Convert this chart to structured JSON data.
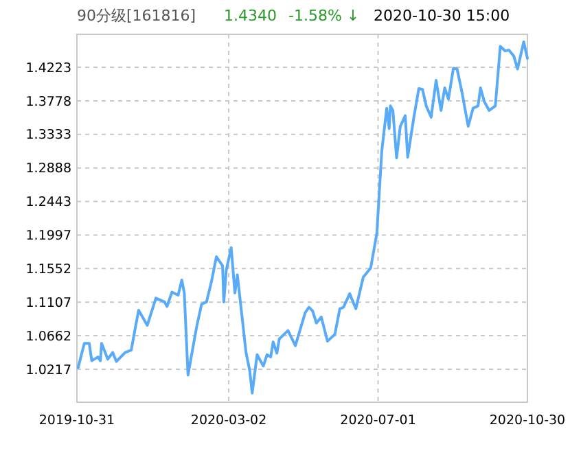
{
  "chart_data": {
    "type": "line",
    "title": "90分级[161816]",
    "annotations": [
      "1.4340",
      "-1.58% ↓",
      "2020-10-30 15:00"
    ],
    "x": [
      "2019-11-01",
      "2019-11-06",
      "2019-11-10",
      "2019-11-12",
      "2019-11-17",
      "2019-11-19",
      "2019-11-20",
      "2019-11-25",
      "2019-11-29",
      "2019-12-02",
      "2019-12-09",
      "2019-12-14",
      "2019-12-17",
      "2019-12-20",
      "2019-12-27",
      "2020-01-03",
      "2020-01-10",
      "2020-01-12",
      "2020-01-16",
      "2020-01-21",
      "2020-01-24",
      "2020-01-26",
      "2020-01-29",
      "2020-02-05",
      "2020-02-09",
      "2020-02-13",
      "2020-02-17",
      "2020-02-21",
      "2020-02-26",
      "2020-02-27",
      "2020-02-29",
      "2020-03-04",
      "2020-03-07",
      "2020-03-09",
      "2020-03-16",
      "2020-03-19",
      "2020-03-21",
      "2020-03-25",
      "2020-03-30",
      "2020-04-02",
      "2020-04-05",
      "2020-04-07",
      "2020-04-10",
      "2020-04-12",
      "2020-04-19",
      "2020-04-25",
      "2020-05-03",
      "2020-05-06",
      "2020-05-09",
      "2020-05-12",
      "2020-05-16",
      "2020-05-21",
      "2020-05-27",
      "2020-05-31",
      "2020-06-03",
      "2020-06-08",
      "2020-06-13",
      "2020-06-19",
      "2020-06-25",
      "2020-06-30",
      "2020-07-04",
      "2020-07-08",
      "2020-07-10",
      "2020-07-11",
      "2020-07-13",
      "2020-07-16",
      "2020-07-19",
      "2020-07-23",
      "2020-07-25",
      "2020-07-30",
      "2020-08-03",
      "2020-08-06",
      "2020-08-09",
      "2020-08-13",
      "2020-08-17",
      "2020-08-21",
      "2020-08-24",
      "2020-08-27",
      "2020-08-31",
      "2020-09-03",
      "2020-09-07",
      "2020-09-12",
      "2020-09-16",
      "2020-09-20",
      "2020-09-22",
      "2020-09-25",
      "2020-09-29",
      "2020-10-04",
      "2020-10-08",
      "2020-10-12",
      "2020-10-15",
      "2020-10-19",
      "2020-10-22",
      "2020-10-27",
      "2020-10-30"
    ],
    "series": [
      {
        "color": "#5aabf7",
        "values": [
          1.024,
          1.056,
          1.056,
          1.033,
          1.038,
          1.033,
          1.056,
          1.035,
          1.044,
          1.032,
          1.044,
          1.047,
          1.074,
          1.1,
          1.08,
          1.116,
          1.111,
          1.105,
          1.124,
          1.12,
          1.14,
          1.123,
          1.014,
          1.078,
          1.108,
          1.111,
          1.138,
          1.171,
          1.159,
          1.111,
          1.153,
          1.183,
          1.123,
          1.147,
          1.044,
          1.02,
          0.99,
          1.041,
          1.026,
          1.041,
          1.038,
          1.058,
          1.043,
          1.062,
          1.073,
          1.053,
          1.097,
          1.104,
          1.099,
          1.083,
          1.091,
          1.059,
          1.068,
          1.102,
          1.104,
          1.122,
          1.102,
          1.144,
          1.156,
          1.202,
          1.311,
          1.368,
          1.341,
          1.371,
          1.365,
          1.302,
          1.344,
          1.358,
          1.303,
          1.356,
          1.394,
          1.393,
          1.371,
          1.356,
          1.405,
          1.365,
          1.395,
          1.38,
          1.421,
          1.42,
          1.389,
          1.344,
          1.368,
          1.371,
          1.395,
          1.377,
          1.365,
          1.371,
          1.45,
          1.444,
          1.445,
          1.437,
          1.42,
          1.456,
          1.434
        ]
      }
    ],
    "xlim": [
      "2019-10-31",
      "2020-10-30"
    ],
    "xticks": [
      "2019-10-31",
      "2020-03-02",
      "2020-07-01",
      "2020-10-30"
    ],
    "ylim": [
      0.978,
      1.466
    ],
    "yticks": [
      1.0217,
      1.0662,
      1.1107,
      1.1552,
      1.1997,
      1.2443,
      1.2888,
      1.3333,
      1.3778,
      1.4223
    ],
    "grid": true,
    "line_style": "solid",
    "marker": "none"
  }
}
